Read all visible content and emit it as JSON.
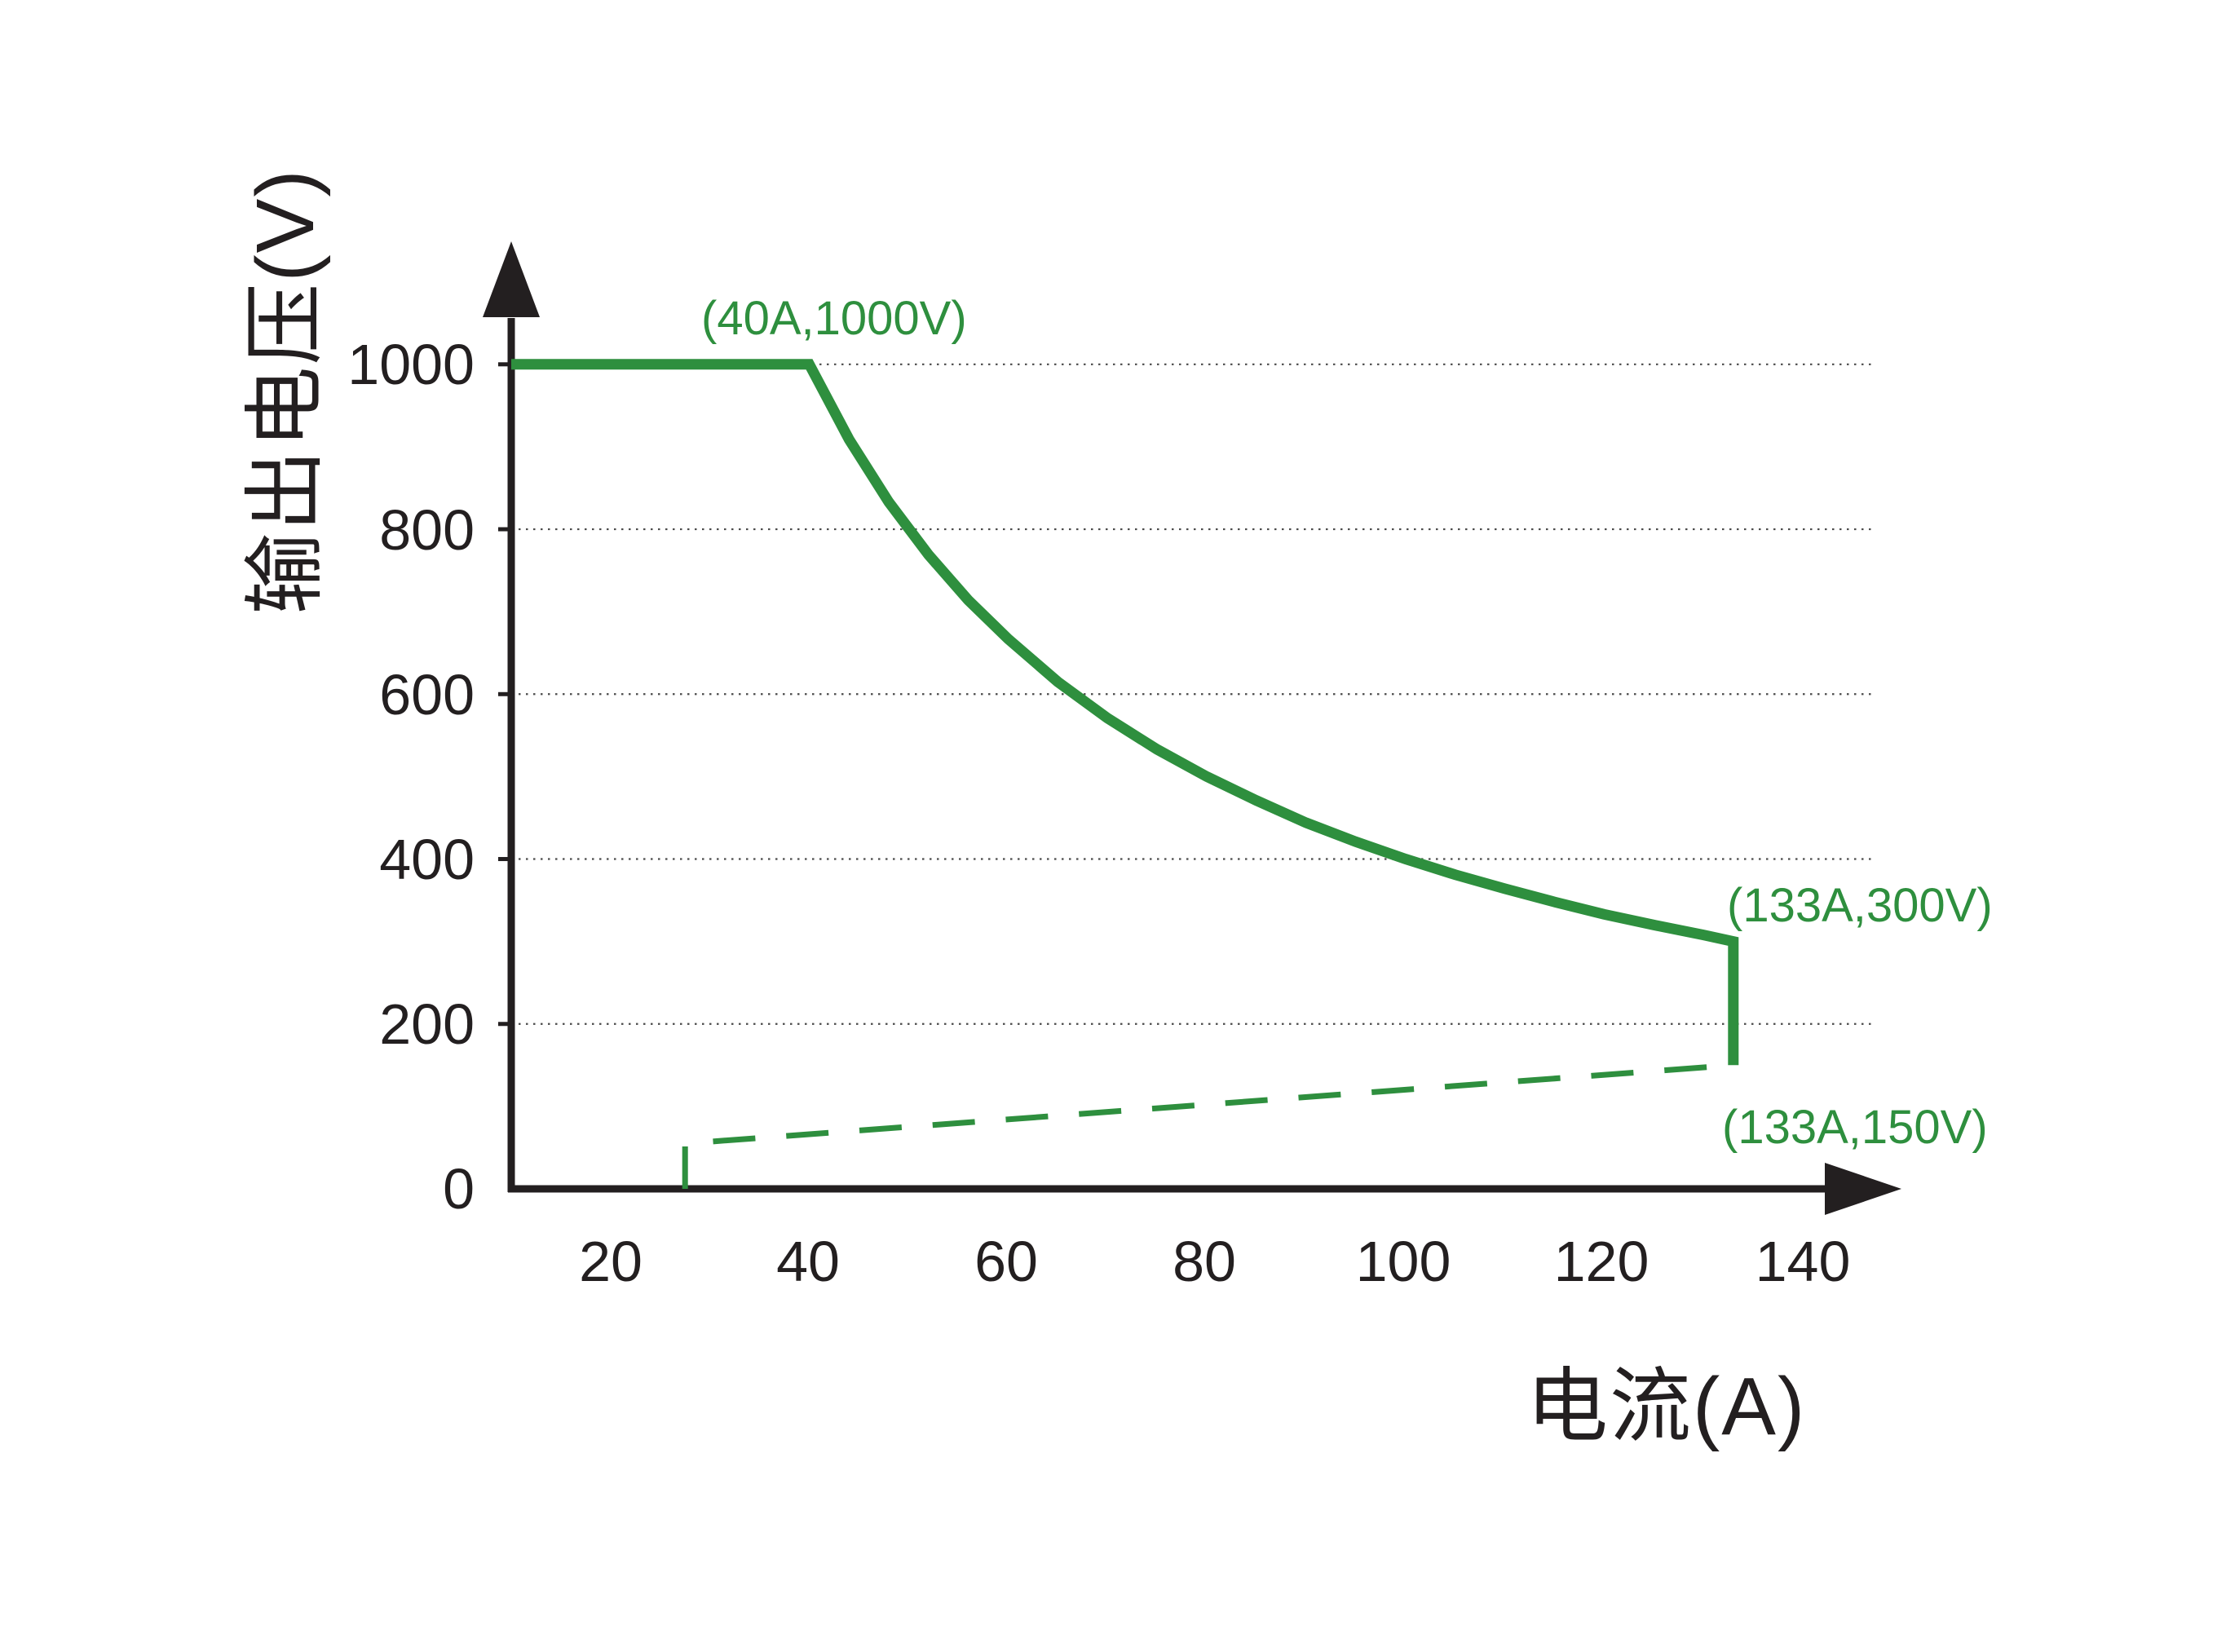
{
  "page": {
    "background": "#ffffff"
  },
  "chart_data": {
    "type": "line",
    "title": "",
    "xlabel": "电流(A)",
    "ylabel": "输出电压(V)",
    "x_unit": "A",
    "y_unit": "V",
    "x_ticks": [
      "20",
      "40",
      "60",
      "80",
      "100",
      "120",
      "140"
    ],
    "y_ticks": [
      "1000",
      "800",
      "600",
      "400",
      "200",
      "0"
    ],
    "xlim": [
      10,
      150
    ],
    "ylim": [
      0,
      1070
    ],
    "grid": "horizontal-dotted",
    "legend": "none",
    "colors": {
      "curve": "#2e8f3e",
      "axis": "#231f20",
      "grid": "#4a4a4a",
      "annotation": "#2e8f3e",
      "tick_label": "#231f20"
    },
    "series": [
      {
        "name": "output-voltage-limit-solid",
        "style": "solid",
        "width": 13,
        "points": [
          [
            10,
            1000
          ],
          [
            40,
            1000
          ],
          [
            44,
            909
          ],
          [
            48,
            833
          ],
          [
            52,
            769
          ],
          [
            56,
            714
          ],
          [
            60,
            667
          ],
          [
            65,
            615
          ],
          [
            70,
            571
          ],
          [
            75,
            533
          ],
          [
            80,
            500
          ],
          [
            85,
            471
          ],
          [
            90,
            444
          ],
          [
            95,
            421
          ],
          [
            100,
            400
          ],
          [
            105,
            381
          ],
          [
            110,
            364
          ],
          [
            115,
            348
          ],
          [
            120,
            333
          ],
          [
            125,
            320
          ],
          [
            130,
            308
          ],
          [
            133,
            300
          ],
          [
            133,
            150
          ]
        ]
      },
      {
        "name": "min-voltage-boundary-dashed",
        "style": "dashed",
        "width": 7,
        "points": [
          [
            27.5,
            0
          ],
          [
            27.5,
            55
          ],
          [
            133,
            150
          ]
        ]
      }
    ],
    "annotations": [
      {
        "text": "(40A,1000V)",
        "point": [
          40,
          1000
        ]
      },
      {
        "text": "(133A,300V)",
        "point": [
          133,
          300
        ]
      },
      {
        "text": "(133A,150V)",
        "point": [
          133,
          150
        ]
      }
    ]
  }
}
